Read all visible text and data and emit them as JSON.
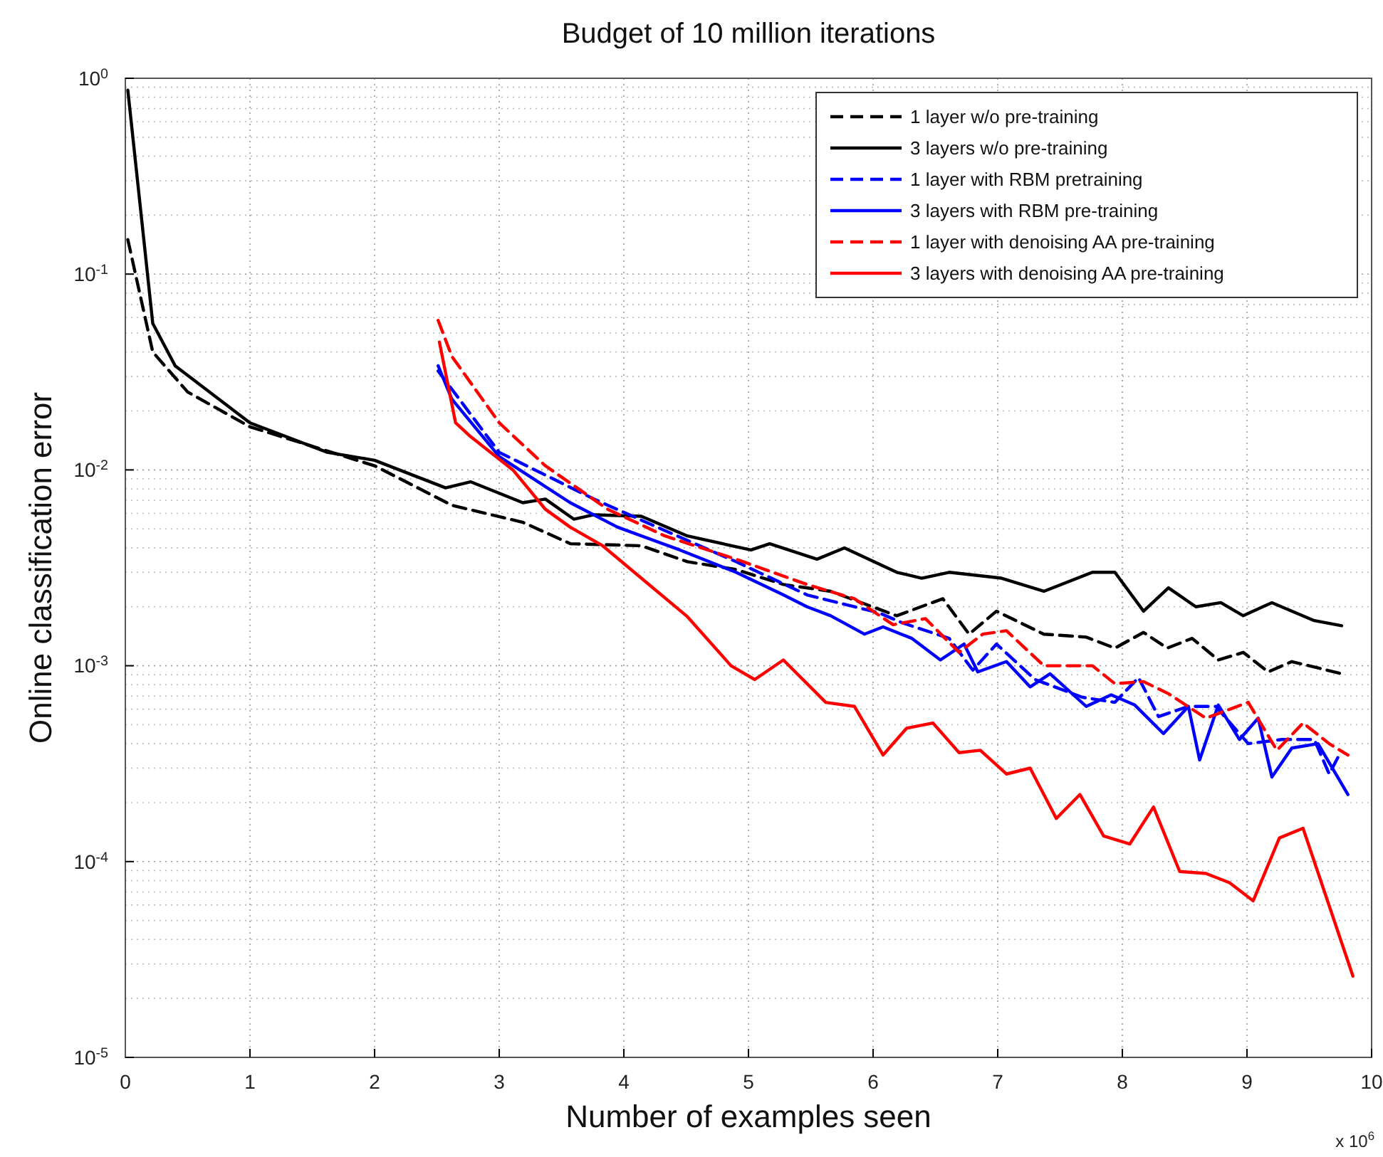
{
  "chart_data": {
    "type": "line",
    "title": "Budget of 10 million iterations",
    "xlabel": "Number of examples seen",
    "ylabel": "Online classification error",
    "annotations": [
      "x 10$^{6}$"
    ],
    "xlim": [
      0,
      10
    ],
    "xticks": [
      0,
      1,
      2,
      3,
      4,
      5,
      6,
      7,
      8,
      9,
      10
    ],
    "ylim": [
      1e-05,
      1
    ],
    "yticks": [
      {
        "value": 1,
        "label": "10$^{0}$"
      },
      {
        "value": 0.1,
        "label": "10$^{-1}$"
      },
      {
        "value": 0.01,
        "label": "10$^{-2}$"
      },
      {
        "value": 0.001,
        "label": "10$^{-3}$"
      },
      {
        "value": 0.0001,
        "label": "10$^{-4}$"
      },
      {
        "value": 1e-05,
        "label": "10$^{-5}$"
      }
    ],
    "log": "y",
    "grid": true,
    "legend": "top right",
    "series": [
      {
        "name": "1 layer w/o pre-training",
        "color": "#000000",
        "line_style": "dashed",
        "x": [
          0.02,
          0.22,
          0.5,
          1,
          2,
          2.62,
          3.19,
          3.57,
          4.14,
          4.51,
          4.9,
          5.28,
          5.66,
          6.19,
          6.56,
          6.77,
          6.99,
          7.37,
          7.71,
          7.94,
          8.17,
          8.36,
          8.56,
          8.77,
          8.97,
          9.17,
          9.36,
          9.76
        ],
        "values": [
          0.15,
          0.04,
          0.025,
          0.0166,
          0.0105,
          0.0066,
          0.0054,
          0.0042,
          0.0041,
          0.0034,
          0.0031,
          0.0026,
          0.0024,
          0.0018,
          0.0022,
          0.00145,
          0.0019,
          0.00145,
          0.0014,
          0.00123,
          0.00148,
          0.00123,
          0.00138,
          0.00107,
          0.00117,
          0.00093,
          0.00105,
          0.00091
        ]
      },
      {
        "name": "3 layers w/o pre-training",
        "color": "#000000",
        "line_style": "solid",
        "x": [
          0.02,
          0.22,
          0.4,
          1,
          1.62,
          2,
          2.57,
          2.77,
          3.19,
          3.37,
          3.6,
          3.76,
          4.14,
          4.51,
          5.02,
          5.17,
          5.55,
          5.77,
          6.19,
          6.39,
          6.61,
          7.03,
          7.37,
          7.76,
          7.94,
          8.17,
          8.37,
          8.59,
          8.79,
          8.97,
          9.2,
          9.54,
          9.76
        ],
        "values": [
          0.87,
          0.056,
          0.034,
          0.0174,
          0.0123,
          0.0112,
          0.0081,
          0.0087,
          0.0068,
          0.0071,
          0.0056,
          0.0059,
          0.0058,
          0.0046,
          0.0039,
          0.0042,
          0.0035,
          0.004,
          0.003,
          0.0028,
          0.003,
          0.0028,
          0.0024,
          0.003,
          0.003,
          0.0019,
          0.0025,
          0.002,
          0.0021,
          0.0018,
          0.0021,
          0.0017,
          0.0016
        ]
      },
      {
        "name": "1 layer with RBM pretraining",
        "color": "#0000ff",
        "line_style": "dashed",
        "x": [
          2.51,
          3,
          3.76,
          4.33,
          4.9,
          5.47,
          6.05,
          6.23,
          6.61,
          6.8,
          6.99,
          7.3,
          7.68,
          7.94,
          8.13,
          8.29,
          8.53,
          8.75,
          9.01,
          9.28,
          9.54,
          9.66,
          9.74
        ],
        "values": [
          0.032,
          0.0123,
          0.0071,
          0.0049,
          0.0034,
          0.0023,
          0.00186,
          0.00166,
          0.00138,
          0.00095,
          0.00129,
          0.00085,
          0.00069,
          0.00065,
          0.00087,
          0.00055,
          0.00062,
          0.00062,
          0.0004,
          0.00042,
          0.00042,
          0.00028,
          0.00035
        ]
      },
      {
        "name": "3 layers with RBM pre-training",
        "color": "#0000ff",
        "line_style": "solid",
        "x": [
          2.51,
          2.62,
          3,
          3.57,
          3.95,
          4.45,
          4.9,
          5.28,
          5.47,
          5.66,
          5.93,
          6.08,
          6.31,
          6.54,
          6.73,
          6.84,
          7.07,
          7.26,
          7.42,
          7.71,
          7.91,
          8.1,
          8.33,
          8.53,
          8.62,
          8.77,
          8.94,
          9.09,
          9.2,
          9.36,
          9.57,
          9.81
        ],
        "values": [
          0.034,
          0.023,
          0.0117,
          0.0068,
          0.0051,
          0.0039,
          0.003,
          0.0023,
          0.002,
          0.0018,
          0.00145,
          0.00158,
          0.00138,
          0.00107,
          0.00129,
          0.00093,
          0.00105,
          0.00078,
          0.00091,
          0.00062,
          0.00071,
          0.00063,
          0.00045,
          0.00062,
          0.00033,
          0.00063,
          0.00042,
          0.00054,
          0.00027,
          0.00038,
          0.0004,
          0.00022
        ]
      },
      {
        "name": "1 layer with denoising AA pre-training",
        "color": "#ff0000",
        "line_style": "dashed",
        "x": [
          2.51,
          2.62,
          3,
          3.37,
          3.87,
          4.33,
          4.9,
          5.47,
          5.85,
          6.16,
          6.42,
          6.69,
          6.88,
          7.07,
          7.37,
          7.76,
          7.94,
          8.17,
          8.37,
          8.67,
          9.01,
          9.24,
          9.45,
          9.66,
          9.81
        ],
        "values": [
          0.058,
          0.038,
          0.0174,
          0.0105,
          0.0063,
          0.0046,
          0.0035,
          0.0026,
          0.0022,
          0.00162,
          0.00174,
          0.00117,
          0.00145,
          0.00151,
          0.001,
          0.001,
          0.00081,
          0.00083,
          0.00072,
          0.00054,
          0.00065,
          0.00037,
          0.00051,
          0.0004,
          0.00035
        ]
      },
      {
        "name": "3 layers with denoising AA pre-training",
        "color": "#ff0000",
        "line_style": "solid",
        "x": [
          2.52,
          2.65,
          2.77,
          3.11,
          3.37,
          3.57,
          3.83,
          4.14,
          4.51,
          4.86,
          5.05,
          5.28,
          5.62,
          5.85,
          6.08,
          6.27,
          6.48,
          6.69,
          6.86,
          7.07,
          7.26,
          7.47,
          7.66,
          7.85,
          8.06,
          8.25,
          8.46,
          8.67,
          8.86,
          9.05,
          9.26,
          9.45,
          9.85
        ],
        "values": [
          0.045,
          0.0174,
          0.0148,
          0.01,
          0.0063,
          0.0051,
          0.0041,
          0.0028,
          0.00178,
          0.001,
          0.00085,
          0.00107,
          0.00065,
          0.00062,
          0.00035,
          0.00048,
          0.00051,
          0.00036,
          0.00037,
          0.00028,
          0.0003,
          0.000166,
          0.00022,
          0.000135,
          0.000123,
          0.00019,
          8.9e-05,
          8.7e-05,
          7.8e-05,
          6.3e-05,
          0.000132,
          0.000148,
          2.6e-05
        ]
      }
    ]
  }
}
